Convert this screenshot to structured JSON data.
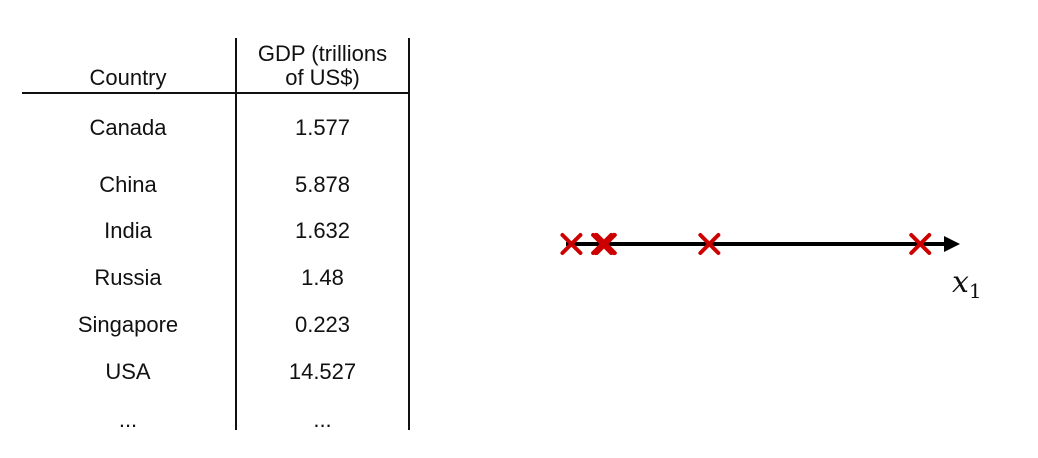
{
  "table": {
    "header": {
      "country": "Country",
      "gdp_line1": "GDP (trillions",
      "gdp_line2": "of US$)"
    },
    "rows": [
      {
        "country": "Canada",
        "gdp": "1.577"
      },
      {
        "country": "China",
        "gdp": "5.878"
      },
      {
        "country": "India",
        "gdp": "1.632"
      },
      {
        "country": "Russia",
        "gdp": "1.48"
      },
      {
        "country": "Singapore",
        "gdp": "0.223"
      },
      {
        "country": "USA",
        "gdp": "14.527"
      },
      {
        "country": "...",
        "gdp": "..."
      }
    ]
  },
  "axis": {
    "label_main": "x",
    "label_sub": "1",
    "axis_color": "#000000",
    "marker_color": "#cc0000",
    "marker_shape": "x",
    "points": [
      0.223,
      1.48,
      1.577,
      1.632,
      5.878,
      14.527
    ],
    "range": [
      0,
      15.5
    ]
  }
}
